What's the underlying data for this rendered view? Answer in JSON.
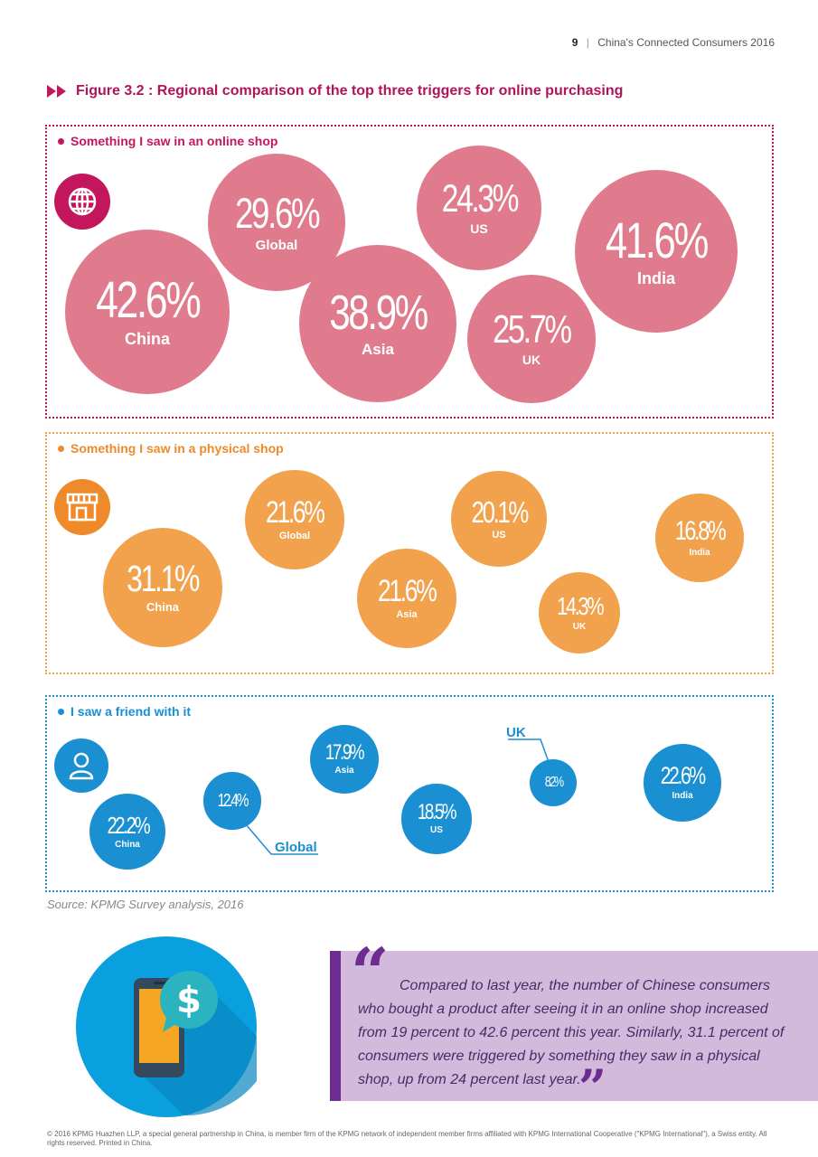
{
  "header": {
    "page_number": "9",
    "separator": "|",
    "doc_title": "China's Connected Consumers 2016"
  },
  "figure_title": "Figure 3.2 : Regional comparison of the top three triggers for online purchasing",
  "colors": {
    "online": "#e07b8e",
    "online_dark": "#c4165c",
    "physical": "#f2a24c",
    "physical_dark": "#ee8a2a",
    "friend": "#1a8fd1",
    "friend_dark": "#1a8fd1"
  },
  "chart_data": [
    {
      "type": "bubble",
      "title": "Something I saw in an online shop",
      "icon": "globe-icon",
      "categories": [
        "China",
        "Global",
        "Asia",
        "US",
        "UK",
        "India"
      ],
      "values": [
        42.6,
        29.6,
        38.9,
        24.3,
        25.7,
        41.6
      ],
      "labels": [
        "42.6%",
        "29.6%",
        "38.9%",
        "24.3%",
        "25.7%",
        "41.6%"
      ]
    },
    {
      "type": "bubble",
      "title": "Something I saw in a physical shop",
      "icon": "shop-icon",
      "categories": [
        "China",
        "Global",
        "Asia",
        "US",
        "UK",
        "India"
      ],
      "values": [
        31.1,
        21.6,
        21.6,
        20.1,
        14.3,
        16.8
      ],
      "labels": [
        "31.1%",
        "21.6%",
        "21.6%",
        "20.1%",
        "14.3%",
        "16.8%"
      ]
    },
    {
      "type": "bubble",
      "title": "I saw a friend with it",
      "icon": "person-icon",
      "categories": [
        "China",
        "Global",
        "Asia",
        "US",
        "UK",
        "India"
      ],
      "values": [
        22.2,
        12.4,
        17.9,
        18.5,
        8.2,
        22.6
      ],
      "labels": [
        "22.2%",
        "12.4%",
        "17.9%",
        "18.5%",
        "8.2%",
        "22.6%"
      ]
    }
  ],
  "source": "Source: KPMG Survey analysis, 2016",
  "quote": "Compared to last year, the number of Chinese consumers who bought a product after seeing it in an online shop increased from 19 percent to 42.6 percent this year. Similarly, 31.1 percent of consumers were triggered by something they saw in a physical shop, up from 24 percent last year.",
  "footer": "© 2016 KPMG Huazhen LLP, a special general partnership in China, is member firm of the KPMG network of independent member firms affiliated with KPMG International Cooperative (\"KPMG International\"), a Swiss entity. All rights reserved. Printed in China."
}
